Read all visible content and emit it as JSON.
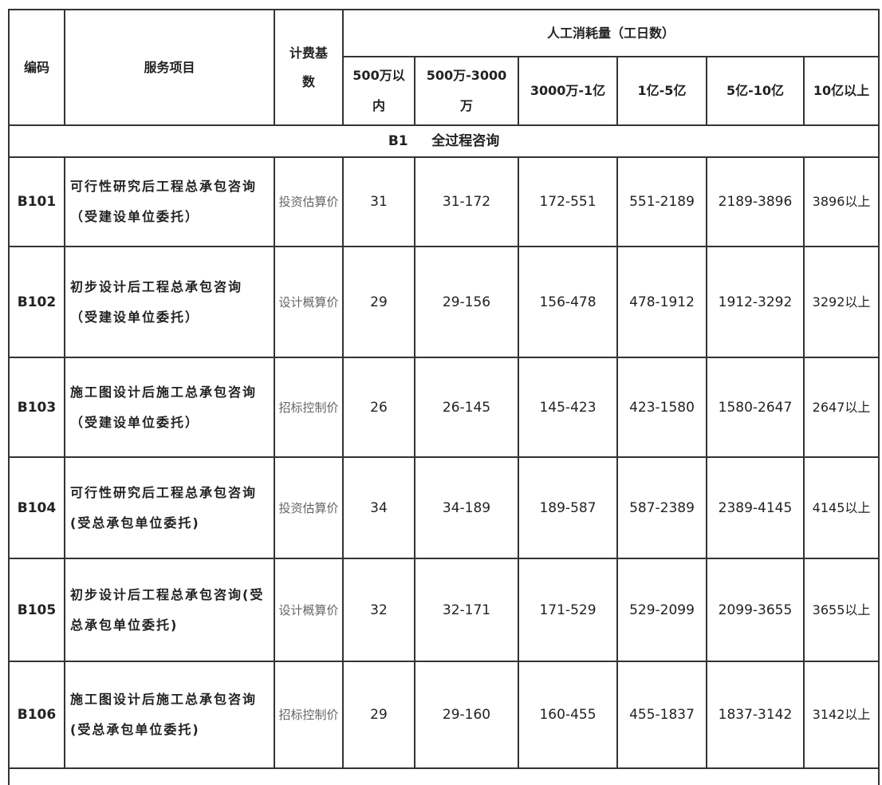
{
  "header": {
    "code": "编码",
    "service": "服务项目",
    "basis": "计费基数",
    "labor": "人工消耗量（工日数）",
    "ranges": [
      "500万以内",
      "500万-3000万",
      "3000万-1亿",
      "1亿-5亿",
      "5亿-10亿",
      "10亿以上"
    ]
  },
  "section": {
    "code": "B1",
    "title": "全过程咨询"
  },
  "rows": [
    {
      "code": "B101",
      "service": "可行性研究后工程总承包咨询（受建设单位委托）",
      "basis": "投资估算价",
      "v": [
        "31",
        "31-172",
        "172-551",
        "551-2189",
        "2189-3896",
        "3896以上"
      ]
    },
    {
      "code": "B102",
      "service": "初步设计后工程总承包咨询（受建设单位委托）",
      "basis": "设计概算价",
      "v": [
        "29",
        "29-156",
        "156-478",
        "478-1912",
        "1912-3292",
        "3292以上"
      ]
    },
    {
      "code": "B103",
      "service": "施工图设计后施工总承包咨询（受建设单位委托）",
      "basis": "招标控制价",
      "v": [
        "26",
        "26-145",
        "145-423",
        "423-1580",
        "1580-2647",
        "2647以上"
      ]
    },
    {
      "code": "B104",
      "service": "可行性研究后工程总承包咨询(受总承包单位委托)",
      "basis": "投资估算价",
      "v": [
        "34",
        "34-189",
        "189-587",
        "587-2389",
        "2389-4145",
        "4145以上"
      ]
    },
    {
      "code": "B105",
      "service": "初步设计后工程总承包咨询(受总承包单位委托)",
      "basis": "设计概算价",
      "v": [
        "32",
        "32-171",
        "171-529",
        "529-2099",
        "2099-3655",
        "3655以上"
      ]
    },
    {
      "code": "B106",
      "service": "施工图设计后施工总承包咨询(受总承包单位委托)",
      "basis": "招标控制价",
      "v": [
        "29",
        "29-160",
        "160-455",
        "455-1837",
        "1837-3142",
        "3142以上"
      ]
    }
  ]
}
